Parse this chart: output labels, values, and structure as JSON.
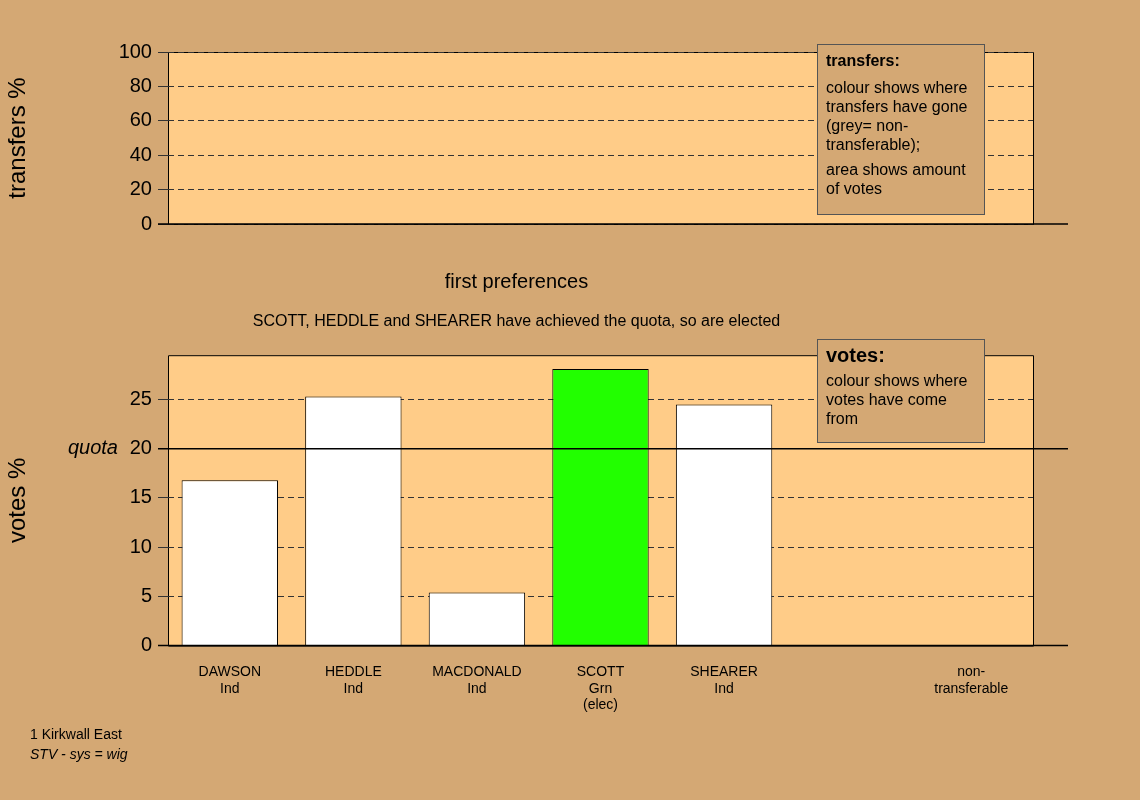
{
  "chart_data": [
    {
      "type": "bar",
      "ylabel": "transfers %",
      "categories": [
        null,
        null,
        null,
        null,
        null,
        null,
        null
      ],
      "values": [
        null,
        null,
        null,
        null,
        null,
        null,
        null
      ],
      "ylim": [
        0,
        100
      ],
      "yticks": [
        0,
        20,
        40,
        60,
        80,
        100
      ],
      "grid": "y",
      "annotations": [
        "transfers:",
        "colour shows where transfers have gone (grey= non-transferable);",
        "area shows amount of votes"
      ]
    },
    {
      "type": "bar",
      "title": "first preferences",
      "subtitle": "SCOTT, HEDDLE and SHEARER have achieved the quota, so are elected",
      "ylabel": "votes %",
      "categories": [
        "DAWSON\nInd",
        "HEDDLE\nInd",
        "MACDONALD\nInd",
        "SCOTT\nGrn\n(elec)",
        "SHEARER\nInd",
        null,
        "non-\ntransferable"
      ],
      "values": [
        16.8,
        25.3,
        5.4,
        28.1,
        24.5,
        null,
        0
      ],
      "colors": [
        "#ffffff",
        "#ffffff",
        "#ffffff",
        "#22ff00",
        "#ffffff",
        "#ffffff",
        "#ffffff"
      ],
      "ylim": [
        0,
        29.5
      ],
      "yticks": [
        0,
        5,
        10,
        15,
        20,
        25
      ],
      "grid": "y",
      "ref_lines": [
        {
          "axis": "y",
          "value": 20,
          "label": "quota"
        }
      ],
      "annotations": [
        "votes:",
        "colour shows where votes have come from",
        "1 Kirkwall East",
        "STV - sys = wig"
      ]
    }
  ]
}
